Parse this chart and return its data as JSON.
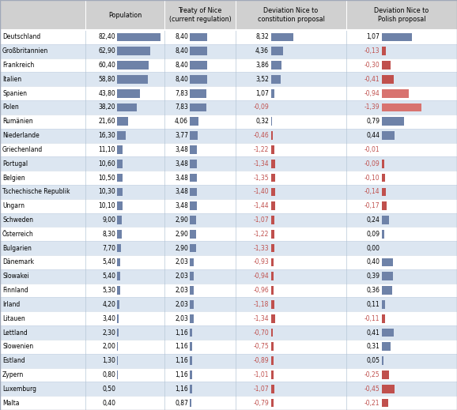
{
  "countries": [
    "Deutschland",
    "Großbritannien",
    "Frankreich",
    "Italien",
    "Spanien",
    "Polen",
    "Rumänien",
    "Niederlande",
    "Griechenland",
    "Portugal",
    "Belgien",
    "Tschechische Republik",
    "Ungarn",
    "Schweden",
    "Österreich",
    "Bulgarien",
    "Dänemark",
    "Slowakei",
    "Finnland",
    "Irland",
    "Litauen",
    "Lettland",
    "Slowenien",
    "Estland",
    "Zypern",
    "Luxemburg",
    "Malta"
  ],
  "population": [
    82.4,
    62.9,
    60.4,
    58.8,
    43.8,
    38.2,
    21.6,
    16.3,
    11.1,
    10.6,
    10.5,
    10.3,
    10.1,
    9.0,
    8.3,
    7.7,
    5.4,
    5.4,
    5.3,
    4.2,
    3.4,
    2.3,
    2.0,
    1.3,
    0.8,
    0.5,
    0.4
  ],
  "treaty_nice": [
    8.4,
    8.4,
    8.4,
    8.4,
    7.83,
    7.83,
    4.06,
    3.77,
    3.48,
    3.48,
    3.48,
    3.48,
    3.48,
    2.9,
    2.9,
    2.9,
    2.03,
    2.03,
    2.03,
    2.03,
    2.03,
    1.16,
    1.16,
    1.16,
    1.16,
    1.16,
    0.87
  ],
  "dev_constitution": [
    8.32,
    4.36,
    3.86,
    3.52,
    1.07,
    -0.09,
    0.32,
    -0.46,
    -1.22,
    -1.34,
    -1.35,
    -1.4,
    -1.44,
    -1.07,
    -1.22,
    -1.33,
    -0.93,
    -0.94,
    -0.96,
    -1.18,
    -1.34,
    -0.7,
    -0.75,
    -0.89,
    -1.01,
    -1.07,
    -0.79
  ],
  "dev_polish": [
    1.07,
    -0.13,
    -0.3,
    -0.41,
    -0.94,
    -1.39,
    0.79,
    0.44,
    -0.01,
    -0.09,
    -0.1,
    -0.14,
    -0.17,
    0.24,
    0.09,
    0.0,
    0.4,
    0.39,
    0.36,
    0.11,
    -0.11,
    0.41,
    0.31,
    0.05,
    -0.25,
    -0.45,
    -0.21
  ],
  "pop_label": [
    "82,40",
    "62,90",
    "60,40",
    "58,80",
    "43,80",
    "38,20",
    "21,60",
    "16,30",
    "11,10",
    "10,60",
    "10,50",
    "10,30",
    "10,10",
    "9,00",
    "8,30",
    "7,70",
    "5,40",
    "5,40",
    "5,30",
    "4,20",
    "3,40",
    "2,30",
    "2,00",
    "1,30",
    "0,80",
    "0,50",
    "0,40"
  ],
  "nice_label": [
    "8,40",
    "8,40",
    "8,40",
    "8,40",
    "7,83",
    "7,83",
    "4,06",
    "3,77",
    "3,48",
    "3,48",
    "3,48",
    "3,48",
    "3,48",
    "2,90",
    "2,90",
    "2,90",
    "2,03",
    "2,03",
    "2,03",
    "2,03",
    "2,03",
    "1,16",
    "1,16",
    "1,16",
    "1,16",
    "1,16",
    "0,87"
  ],
  "dev_const_label": [
    "8,32",
    "4,36",
    "3,86",
    "3,52",
    "1,07",
    "-0,09",
    "0,32",
    "-0,46",
    "-1,22",
    "-1,34",
    "-1,35",
    "-1,40",
    "-1,44",
    "-1,07",
    "-1,22",
    "-1,33",
    "-0,93",
    "-0,94",
    "-0,96",
    "-1,18",
    "-1,34",
    "-0,70",
    "-0,75",
    "-0,89",
    "-1,01",
    "-1,07",
    "-0,79"
  ],
  "dev_polish_label": [
    "1,07",
    "-0,13",
    "-0,30",
    "-0,41",
    "-0,94",
    "-1,39",
    "0,79",
    "0,44",
    "-0,01",
    "-0,09",
    "-0,10",
    "-0,14",
    "-0,17",
    "0,24",
    "0,09",
    "0,00",
    "0,40",
    "0,39",
    "0,36",
    "0,11",
    "-0,11",
    "0,41",
    "0,31",
    "0,05",
    "-0,25",
    "-0,45",
    "-0,21"
  ],
  "col_headers": [
    "Population",
    "Treaty of Nice\n(current regulation)",
    "Deviation Nice to\nconstitution proposal",
    "Deviation Nice to\nPolish proposal"
  ],
  "bar_color_blue": "#6e82a8",
  "bar_color_red": "#c0504d",
  "bar_color_red_light": "#d8736f",
  "header_bg": "#d0d0d0",
  "row_bg_white": "#ffffff",
  "row_bg_gray": "#dce6f1",
  "sep_color": "#b0b8c8",
  "text_dark": "#000000",
  "text_red": "#c0504d"
}
